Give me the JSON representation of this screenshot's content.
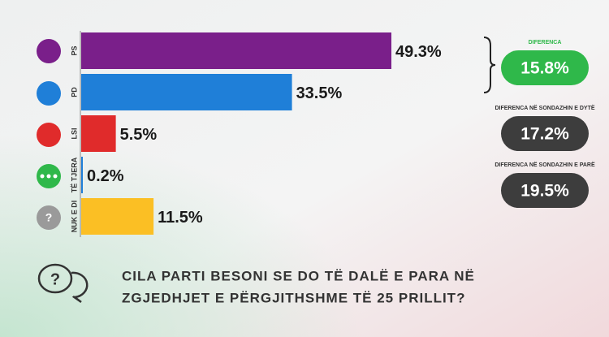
{
  "chart_data": {
    "type": "bar",
    "orientation": "horizontal",
    "categories": [
      "PS",
      "PD",
      "LSI",
      "TË TJERA",
      "NUK E DI"
    ],
    "values": [
      49.3,
      33.5,
      5.5,
      0.2,
      11.5
    ],
    "value_labels": [
      "49.3%",
      "33.5%",
      "5.5%",
      "0.2%",
      "11.5%"
    ],
    "colors": [
      "#7a1f8a",
      "#1f7fd8",
      "#e02b2b",
      "#1f7fd8",
      "#fbbf24"
    ],
    "title": [
      "CILA PARTI BESONI SE DO TË DALË E PARA NË",
      "ZGJEDHJET E PËRGJITHSHME TË 25 PRILLIT?"
    ],
    "annotations": [
      {
        "label": "DIFERENCA",
        "value": "15.8%",
        "color": "#2fb84a"
      },
      {
        "label": "DIFERENCA NË SONDAZHIN E DYTË",
        "value": "17.2%",
        "color": "#3d3d3d"
      },
      {
        "label": "DIFERENCA NË SONDAZHIN E PARË",
        "value": "19.5%",
        "color": "#3d3d3d"
      }
    ]
  }
}
